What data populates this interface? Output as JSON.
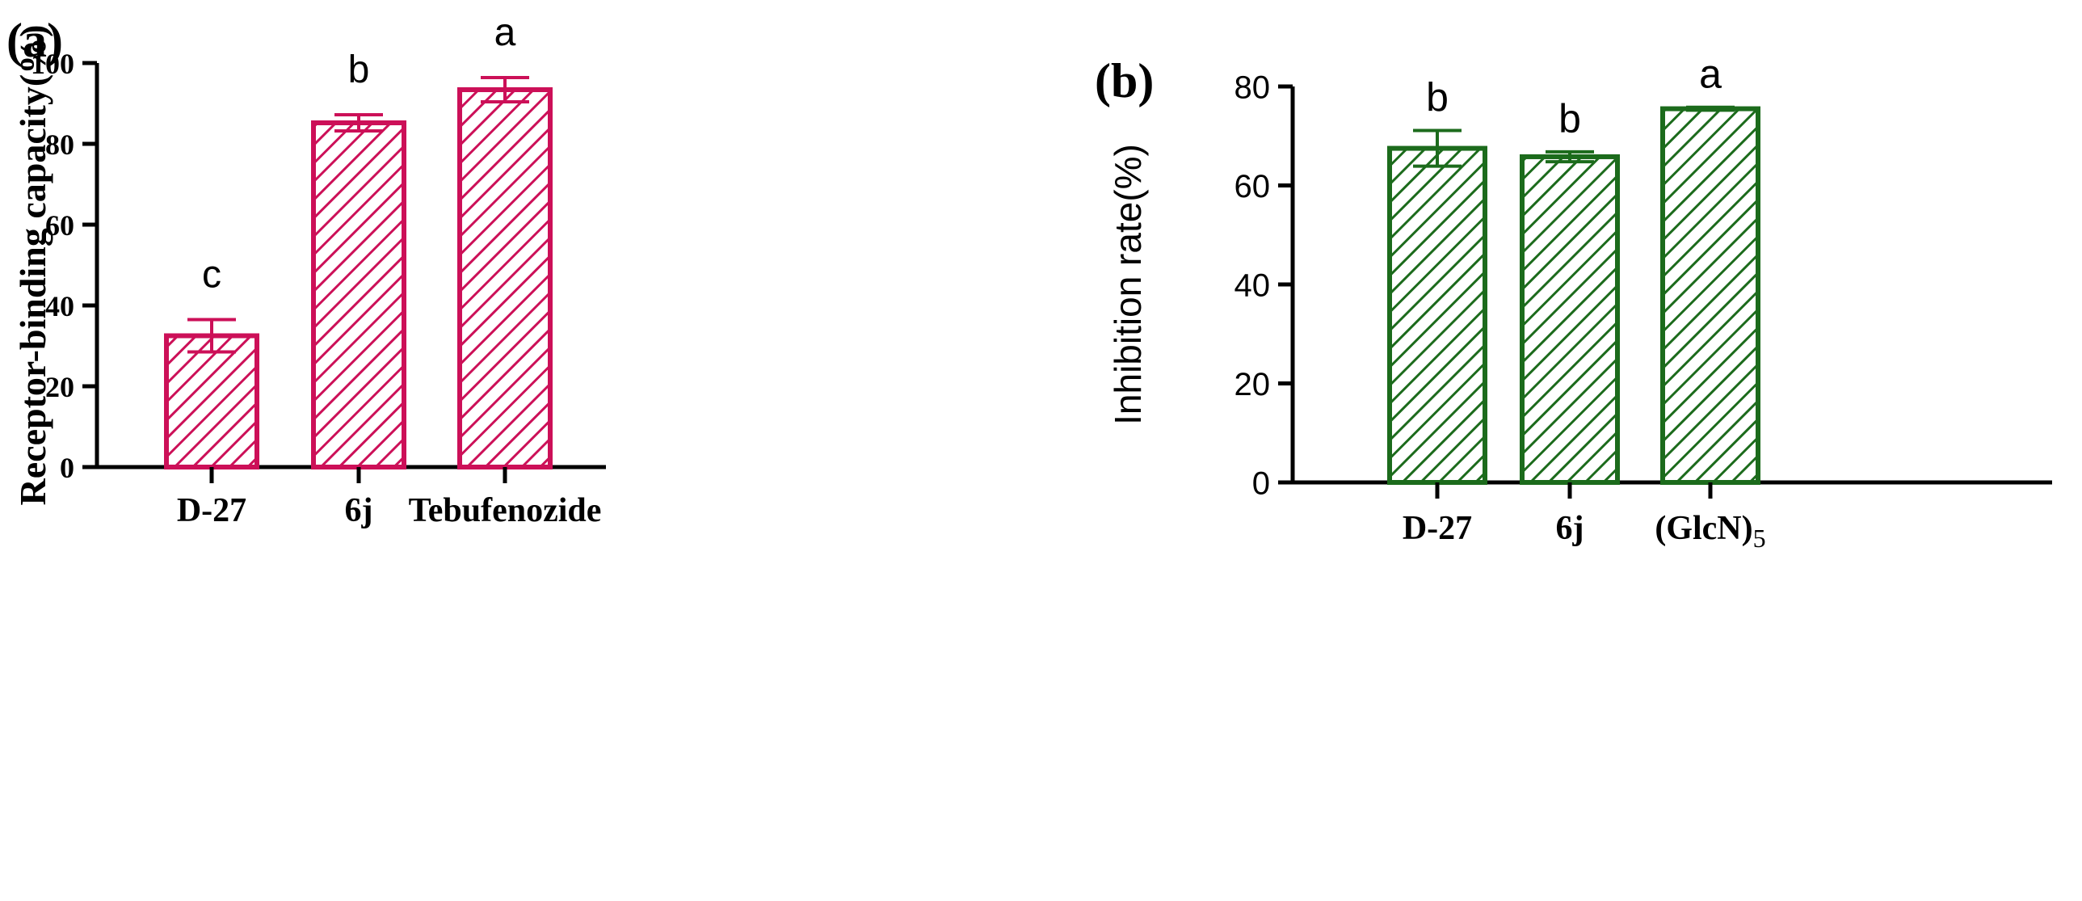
{
  "chart_data": [
    {
      "panel_label": "(a)",
      "type": "bar",
      "title": "",
      "xlabel": "",
      "ylabel": "Receptor-binding capacity(%)",
      "categories": [
        "D-27",
        "6j",
        "Tebufenozide"
      ],
      "values": [
        32.5,
        85.2,
        93.4
      ],
      "errors": [
        4.0,
        2.0,
        3.0
      ],
      "significance": [
        "c",
        "b",
        "a"
      ],
      "ylim": [
        0,
        100
      ],
      "yticks": [
        0,
        20,
        40,
        60,
        80,
        100
      ],
      "grid": false,
      "color": "#cc1058"
    },
    {
      "panel_label": "(b)",
      "type": "bar",
      "title": "",
      "xlabel": "",
      "ylabel": "Inhibition rate(%)",
      "categories": [
        "D-27",
        "6j",
        "(GlcN)5"
      ],
      "category_display": [
        {
          "main": "D-27",
          "sub": ""
        },
        {
          "main": "6j",
          "sub": ""
        },
        {
          "main": "(GlcN)",
          "sub": "5"
        }
      ],
      "values": [
        67.5,
        65.8,
        75.5
      ],
      "errors": [
        3.6,
        1.0,
        0.3
      ],
      "significance": [
        "b",
        "b",
        "a"
      ],
      "ylim": [
        0,
        80
      ],
      "yticks": [
        0,
        20,
        40,
        60,
        80
      ],
      "grid": false,
      "color": "#1c6b1c"
    }
  ]
}
